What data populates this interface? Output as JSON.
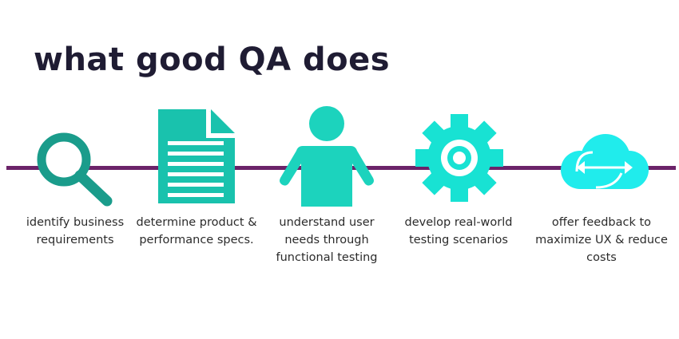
{
  "title": "what good QA does",
  "colors": {
    "title": "#1f1c33",
    "timeline": "#6b2369",
    "search": "#1a9c8b",
    "document": "#19c2ad",
    "person": "#1cd3bd",
    "gear": "#18e2d3",
    "cloud": "#20ecec"
  },
  "steps": [
    {
      "icon": "search-icon",
      "lines": [
        "identify business",
        "requirements"
      ]
    },
    {
      "icon": "document-icon",
      "lines": [
        "determine product &",
        "performance specs."
      ]
    },
    {
      "icon": "person-icon",
      "lines": [
        "understand user",
        "needs through",
        "functional testing"
      ]
    },
    {
      "icon": "gear-icon",
      "lines": [
        "develop real-world",
        "testing scenarios"
      ]
    },
    {
      "icon": "cloud-icon",
      "lines": [
        "offer feedback to",
        "maximize UX & reduce",
        "costs"
      ]
    }
  ]
}
